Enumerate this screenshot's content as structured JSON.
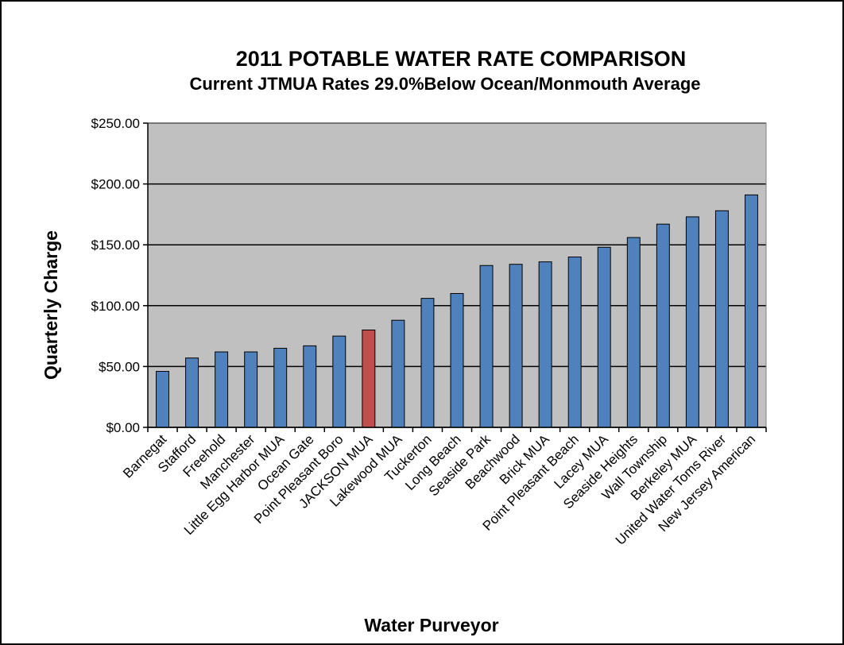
{
  "chart_data": {
    "type": "bar",
    "title": "2011  POTABLE WATER RATE COMPARISON",
    "subtitle": "Current JTMUA Rates 29.0%Below Ocean/Monmouth Average",
    "xlabel": "Water Purveyor",
    "ylabel": "Quarterly Charge",
    "ylim": [
      0,
      250
    ],
    "yticks": [
      0,
      50,
      100,
      150,
      200,
      250
    ],
    "ytick_labels": [
      "$0.00",
      "$50.00",
      "$100.00",
      "$150.00",
      "$200.00",
      "$250.00"
    ],
    "grid": true,
    "legend": "none",
    "categories": [
      "Barnegat",
      "Stafford",
      "Freehold",
      "Manchester",
      "Little Egg Harbor MUA",
      "Ocean Gate",
      "Point Pleasant Boro",
      "JACKSON MUA",
      "Lakewood MUA",
      "Tuckerton",
      "Long Beach",
      "Seaside Park",
      "Beachwood",
      "Brick MUA",
      "Point Pleasant Beach",
      "Lacey MUA",
      "Seaside Heights",
      "Wall Township",
      "Berkeley MUA",
      "United Water Toms River",
      "New Jersey American"
    ],
    "values": [
      46,
      57,
      62,
      62,
      65,
      67,
      75,
      80,
      88,
      106,
      110,
      133,
      134,
      136,
      140,
      148,
      156,
      167,
      173,
      178,
      191
    ],
    "highlight_category": "JACKSON MUA",
    "colors": {
      "bar": "#4F81BD",
      "highlight_bar": "#C0504D",
      "plot_background": "#C0C0C0",
      "gridline": "#000000",
      "frame": "#000000"
    }
  }
}
